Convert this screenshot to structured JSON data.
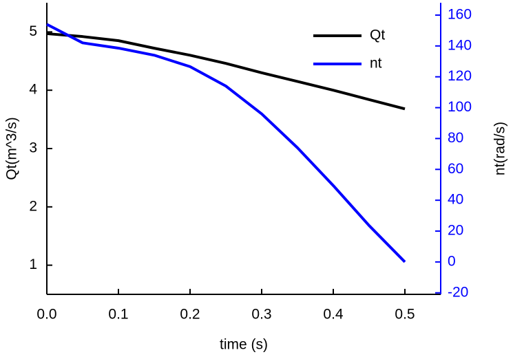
{
  "chart_data": {
    "type": "line",
    "x_label": "time (s)",
    "y_label": "Qt(m^3/s)",
    "y2_label": "nt(rad/s)",
    "x": [
      0,
      0.05,
      0.1,
      0.15,
      0.2,
      0.25,
      0.3,
      0.35,
      0.4,
      0.45,
      0.5
    ],
    "series": [
      {
        "name": "Qt",
        "color": "#000000",
        "values": [
          4.97,
          4.92,
          4.85,
          4.72,
          4.6,
          4.46,
          4.3,
          4.15,
          4.0,
          3.84,
          3.68
        ]
      },
      {
        "name": "nt",
        "color": "#0000ff",
        "axis": "y2",
        "values": [
          154,
          142,
          138.6,
          134,
          126.6,
          114,
          96,
          74,
          49.5,
          23.6,
          0
        ]
      }
    ],
    "xlim": [
      0,
      0.55
    ],
    "xticks": [
      {
        "value": 0,
        "label": "0.0"
      },
      0.1,
      0.2,
      0.3,
      0.4,
      0.5
    ],
    "ylim": [
      0.5,
      5.5
    ],
    "yticks": [
      1,
      2,
      3,
      4,
      5
    ],
    "y2lim": [
      -21,
      168
    ],
    "y2ticks": [
      -20,
      0,
      20,
      40,
      60,
      80,
      100,
      120,
      140,
      160
    ],
    "y2_color": "#0000ff",
    "legend": "upper right",
    "grid": false
  }
}
